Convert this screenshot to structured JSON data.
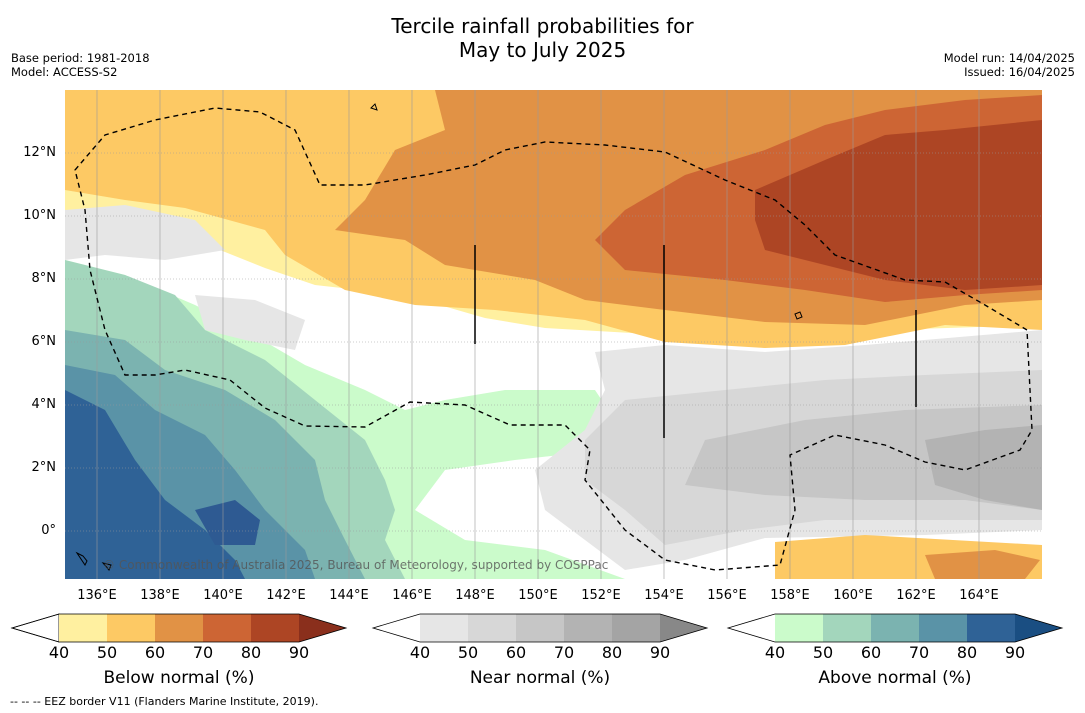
{
  "title_line1": "Tercile rainfall probabilities for",
  "title_line2": "May to July 2025",
  "meta_left": [
    "Base period: 1981-2018",
    "Model: ACCESS-S2"
  ],
  "meta_right": [
    "Model run: 14/04/2025",
    "Issued: 16/04/2025"
  ],
  "latitude_labels": [
    "12°N",
    "10°N",
    "8°N",
    "6°N",
    "4°N",
    "2°N",
    "0°"
  ],
  "longitude_labels": [
    "136°E",
    "138°E",
    "140°E",
    "142°E",
    "144°E",
    "146°E",
    "148°E",
    "150°E",
    "152°E",
    "154°E",
    "156°E",
    "158°E",
    "160°E",
    "162°E",
    "164°E"
  ],
  "copyright": "© Commonwealth of Australia 2025, Bureau of Meteorology, supported by COSPPac",
  "footnote": "--  --  -- EEZ border V11 (Flanders Marine Institute, 2019).",
  "colorbars": [
    {
      "title": "Below normal (%)",
      "ticks": [
        "40",
        "50",
        "60",
        "70",
        "80",
        "90"
      ],
      "colors": [
        "#ffffff",
        "#fff0a0",
        "#fdc964",
        "#e19245",
        "#cd6534",
        "#ad4524",
        "#8a2f1c"
      ]
    },
    {
      "title": "Near normal (%)",
      "ticks": [
        "40",
        "50",
        "60",
        "70",
        "80",
        "90"
      ],
      "colors": [
        "#ffffff",
        "#e6e6e6",
        "#d7d7d7",
        "#c6c6c6",
        "#b3b3b3",
        "#a4a4a4",
        "#888888"
      ]
    },
    {
      "title": "Above normal (%)",
      "ticks": [
        "40",
        "50",
        "60",
        "70",
        "80",
        "90"
      ],
      "colors": [
        "#ffffff",
        "#cbfbcb",
        "#a3d6bc",
        "#7bb3b0",
        "#5a93a7",
        "#2f6296",
        "#1a4e82"
      ]
    }
  ]
}
